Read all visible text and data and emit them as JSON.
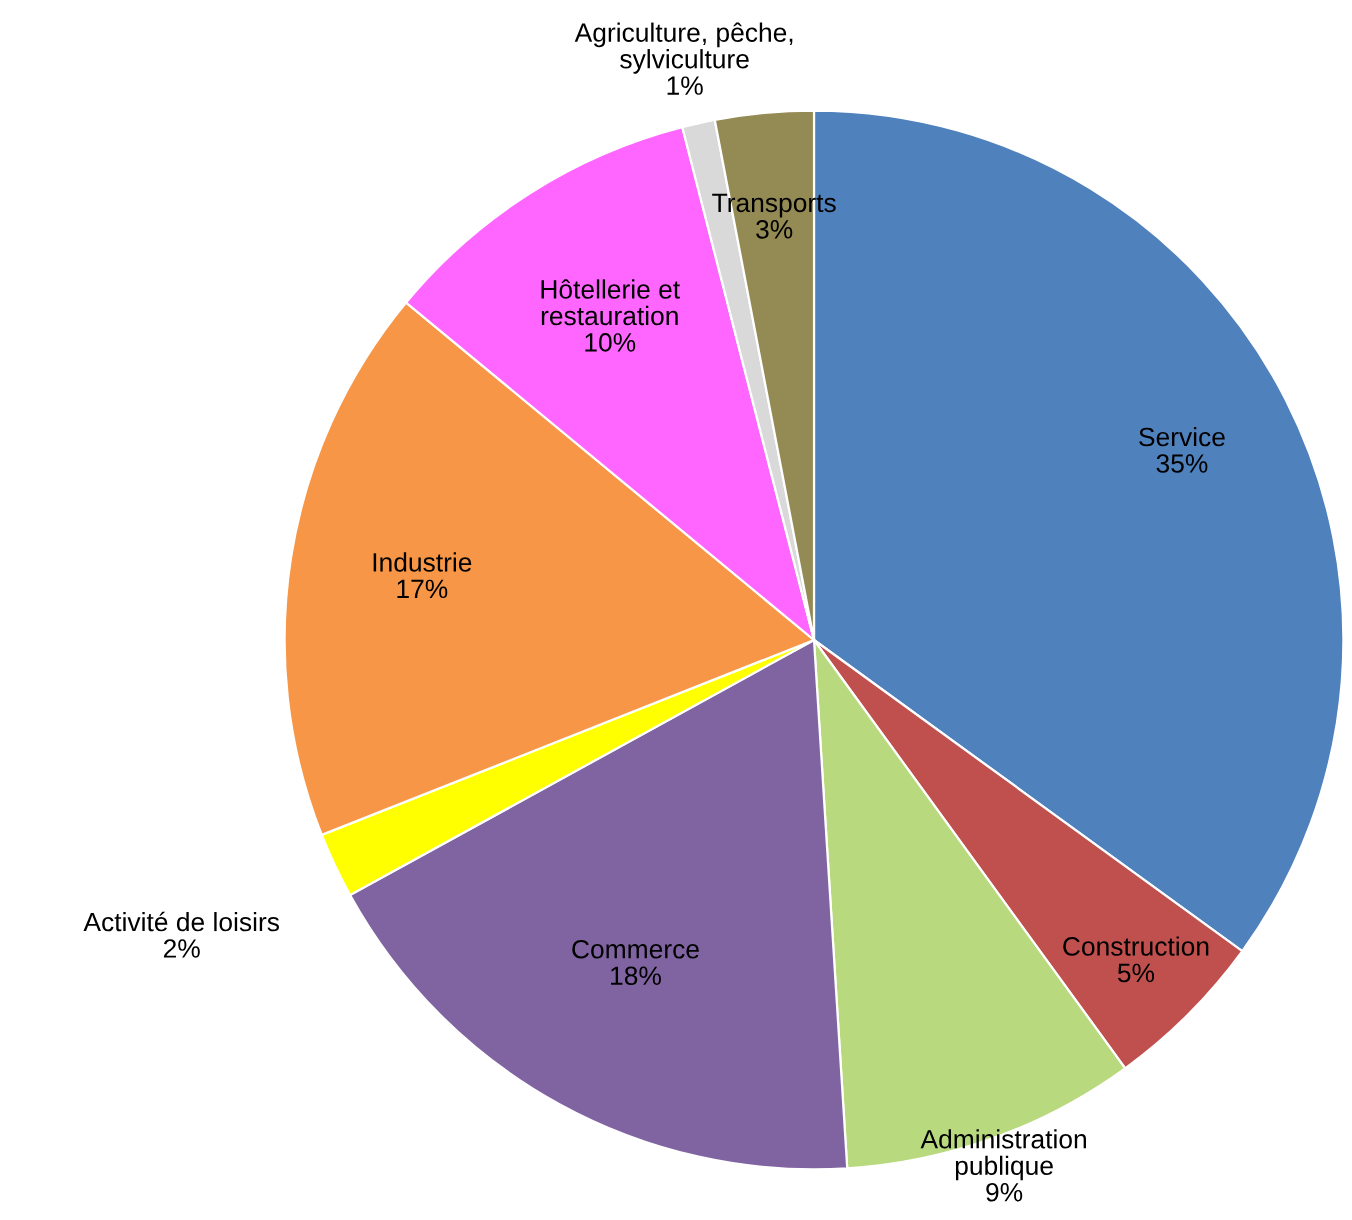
{
  "chart_data": {
    "type": "pie",
    "categories": [
      "Service",
      "Construction",
      "Administration\npublique",
      "Commerce",
      "Activité de loisirs",
      "Industrie",
      "Hôtellerie et\nrestauration",
      "Agriculture, pêche,\nsylviculture",
      "Transports"
    ],
    "values": [
      35,
      5,
      9,
      18,
      2,
      17,
      10,
      1,
      3
    ],
    "value_labels": [
      "35%",
      "5%",
      "9%",
      "18%",
      "2%",
      "17%",
      "10%",
      "1%",
      "3%"
    ],
    "colors": [
      "#4f81bd",
      "#c0504d",
      "#b9d97f",
      "#8064a2",
      "#ffff00",
      "#f79646",
      "#ff66ff",
      "#d9d9d9",
      "#948a54"
    ]
  }
}
